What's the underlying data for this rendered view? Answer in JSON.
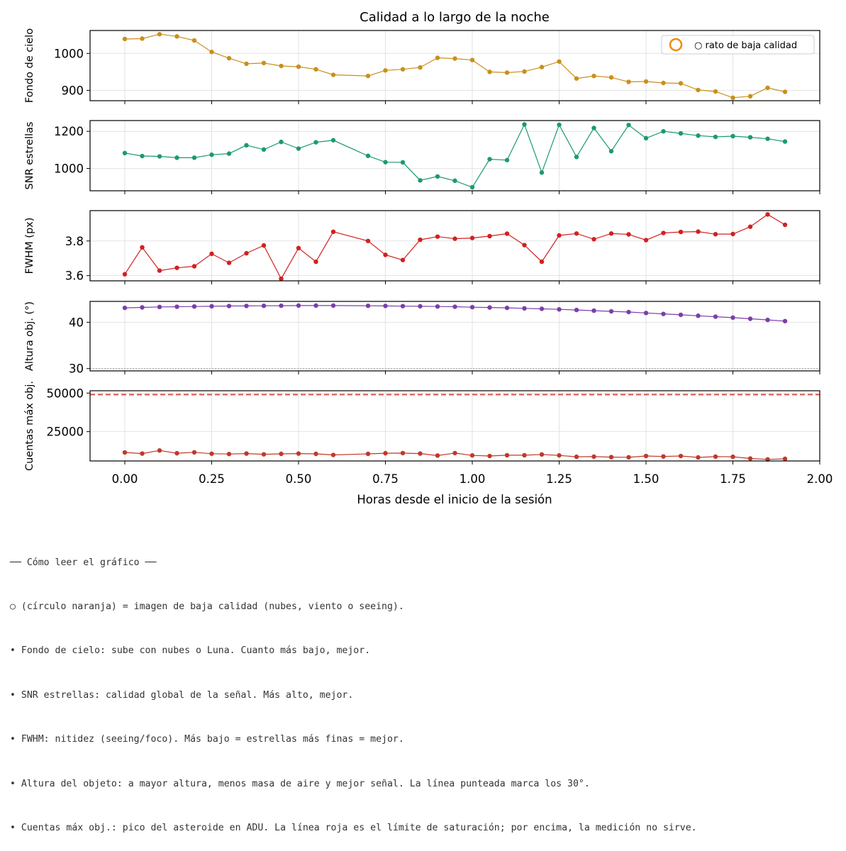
{
  "title": "Calidad a lo largo de la noche",
  "xlabel": "Horas desde el inicio de la sesión",
  "chart_data": {
    "type": "line",
    "x_ticks": [
      "0.00",
      "0.25",
      "0.50",
      "0.75",
      "1.00",
      "1.25",
      "1.50",
      "1.75",
      "2.00"
    ],
    "xlim": [
      -0.1,
      2.0
    ],
    "x": [
      0.0,
      0.05,
      0.1,
      0.15,
      0.2,
      0.25,
      0.3,
      0.35,
      0.4,
      0.45,
      0.5,
      0.55,
      0.6,
      0.7,
      0.75,
      0.8,
      0.85,
      0.9,
      0.95,
      1.0,
      1.05,
      1.1,
      1.15,
      1.2,
      1.25,
      1.3,
      1.35,
      1.4,
      1.45,
      1.5,
      1.55,
      1.6,
      1.65,
      1.7,
      1.75,
      1.8,
      1.85,
      1.9
    ],
    "panels": [
      {
        "ylabel": "Fondo de cielo",
        "color": "#c8901a",
        "ylim": [
          872,
          1062
        ],
        "y_ticks": [
          900,
          1000
        ],
        "y_tick_labels": [
          "900",
          "1000"
        ],
        "values": [
          1039,
          1040,
          1052,
          1046,
          1035,
          1004,
          987,
          972,
          974,
          966,
          964,
          957,
          942,
          939,
          954,
          957,
          962,
          988,
          986,
          982,
          950,
          948,
          951,
          963,
          978,
          932,
          939,
          935,
          923,
          924,
          920,
          919,
          901,
          897,
          880,
          884,
          907,
          896
        ],
        "legend": {
          "label": "○ rato de baja calidad",
          "marker_color": "#f28a0c",
          "position": "upper right"
        }
      },
      {
        "ylabel": "SNR estrellas",
        "color": "#1c9a6e",
        "ylim": [
          880,
          1258
        ],
        "y_ticks": [
          1000,
          1200
        ],
        "y_tick_labels": [
          "1000",
          "1200"
        ],
        "values": [
          1083,
          1067,
          1065,
          1058,
          1058,
          1074,
          1080,
          1125,
          1102,
          1143,
          1107,
          1141,
          1152,
          1068,
          1034,
          1033,
          936,
          957,
          934,
          899,
          1050,
          1045,
          1237,
          978,
          1235,
          1062,
          1218,
          1093,
          1234,
          1163,
          1200,
          1189,
          1177,
          1170,
          1174,
          1168,
          1160,
          1145
        ]
      },
      {
        "ylabel": "FWHM (px)",
        "color": "#d22020",
        "ylim": [
          3.57,
          3.975
        ],
        "y_ticks": [
          3.6,
          3.8
        ],
        "y_tick_labels": [
          "3.6",
          "3.8"
        ],
        "values": [
          3.608,
          3.763,
          3.629,
          3.645,
          3.654,
          3.726,
          3.674,
          3.729,
          3.774,
          3.582,
          3.759,
          3.68,
          3.853,
          3.8,
          3.72,
          3.69,
          3.807,
          3.825,
          3.813,
          3.817,
          3.828,
          3.842,
          3.776,
          3.68,
          3.832,
          3.843,
          3.81,
          3.843,
          3.838,
          3.805,
          3.846,
          3.852,
          3.854,
          3.839,
          3.84,
          3.882,
          3.953,
          3.893
        ]
      },
      {
        "ylabel": "Altura obj. (°)",
        "color": "#7b3fa8",
        "ylim": [
          29.5,
          44.5
        ],
        "y_ticks": [
          30,
          40
        ],
        "y_tick_labels": [
          "30",
          "40"
        ],
        "reference_line": {
          "value": 30,
          "style": "dotted",
          "color": "#999999"
        },
        "values": [
          43.1,
          43.2,
          43.3,
          43.35,
          43.4,
          43.45,
          43.5,
          43.52,
          43.55,
          43.57,
          43.6,
          43.6,
          43.6,
          43.55,
          43.52,
          43.48,
          43.45,
          43.4,
          43.35,
          43.25,
          43.18,
          43.1,
          43.0,
          42.9,
          42.78,
          42.65,
          42.5,
          42.35,
          42.2,
          42.0,
          41.8,
          41.6,
          41.4,
          41.2,
          41.0,
          40.75,
          40.5,
          40.25
        ]
      },
      {
        "ylabel": "Cuentas máx obj.",
        "color": "#c0392b",
        "ylim": [
          6000,
          51500
        ],
        "y_ticks": [
          25000,
          50000
        ],
        "y_tick_labels": [
          "25000",
          "50000"
        ],
        "reference_line": {
          "value": 49000,
          "style": "dashed",
          "color": "#d04a3e"
        },
        "values": [
          11500,
          10800,
          12800,
          11000,
          11600,
          10700,
          10500,
          10800,
          10300,
          10600,
          10800,
          10600,
          9900,
          10600,
          11000,
          11100,
          10800,
          9500,
          11100,
          9600,
          9200,
          9700,
          9700,
          10200,
          9600,
          8700,
          8800,
          8500,
          8400,
          9200,
          8900,
          9200,
          8300,
          8800,
          8700,
          7600,
          7000,
          7400
        ]
      }
    ]
  },
  "notes": [
    "── Cómo leer el gráfico ──",
    "○ (círculo naranja) = imagen de baja calidad (nubes, viento o seeing).",
    "• Fondo de cielo: sube con nubes o Luna. Cuanto más bajo, mejor.",
    "• SNR estrellas: calidad global de la señal. Más alto, mejor.",
    "• FWHM: nitidez (seeing/foco). Más bajo = estrellas más finas = mejor.",
    "• Altura del objeto: a mayor altura, menos masa de aire y mejor señal. La línea punteada marca los 30°.",
    "• Cuentas máx obj.: pico del asteroide en ADU. La línea roja es el límite de saturación; por encima, la medición no sirve."
  ]
}
